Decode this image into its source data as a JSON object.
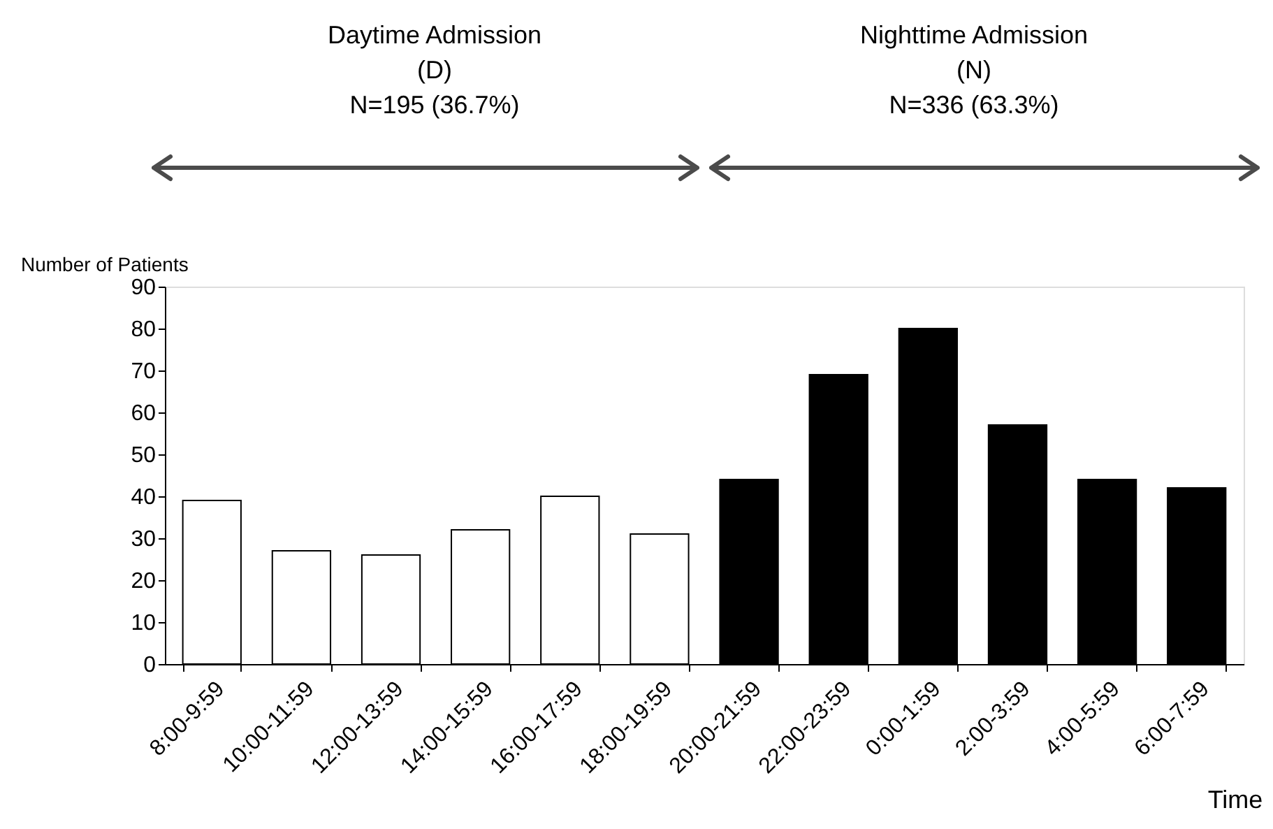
{
  "chart_data": {
    "type": "bar",
    "categories": [
      "8:00-9:59",
      "10:00-11:59",
      "12:00-13:59",
      "14:00-15:59",
      "16:00-17:59",
      "18:00-19:59",
      "20:00-21:59",
      "22:00-23:59",
      "0:00-1:59",
      "2:00-3:59",
      "4:00-5:59",
      "6:00-7:59"
    ],
    "values": [
      39,
      27,
      26,
      32,
      40,
      31,
      44,
      69,
      80,
      57,
      44,
      42
    ],
    "colors": [
      "#ffffff",
      "#ffffff",
      "#ffffff",
      "#ffffff",
      "#ffffff",
      "#ffffff",
      "#000000",
      "#000000",
      "#000000",
      "#000000",
      "#000000",
      "#000000"
    ],
    "ylim": [
      0,
      90
    ],
    "yticks": [
      0,
      10,
      20,
      30,
      40,
      50,
      60,
      70,
      80,
      90
    ],
    "ylabel": "Number of Patients",
    "xlabel": "Time",
    "annotations": [
      "Daytime Admission\n(D)\nN=195 (36.7%)",
      "Nighttime Admission\n(N)\nN=336 (63.3%)"
    ]
  }
}
